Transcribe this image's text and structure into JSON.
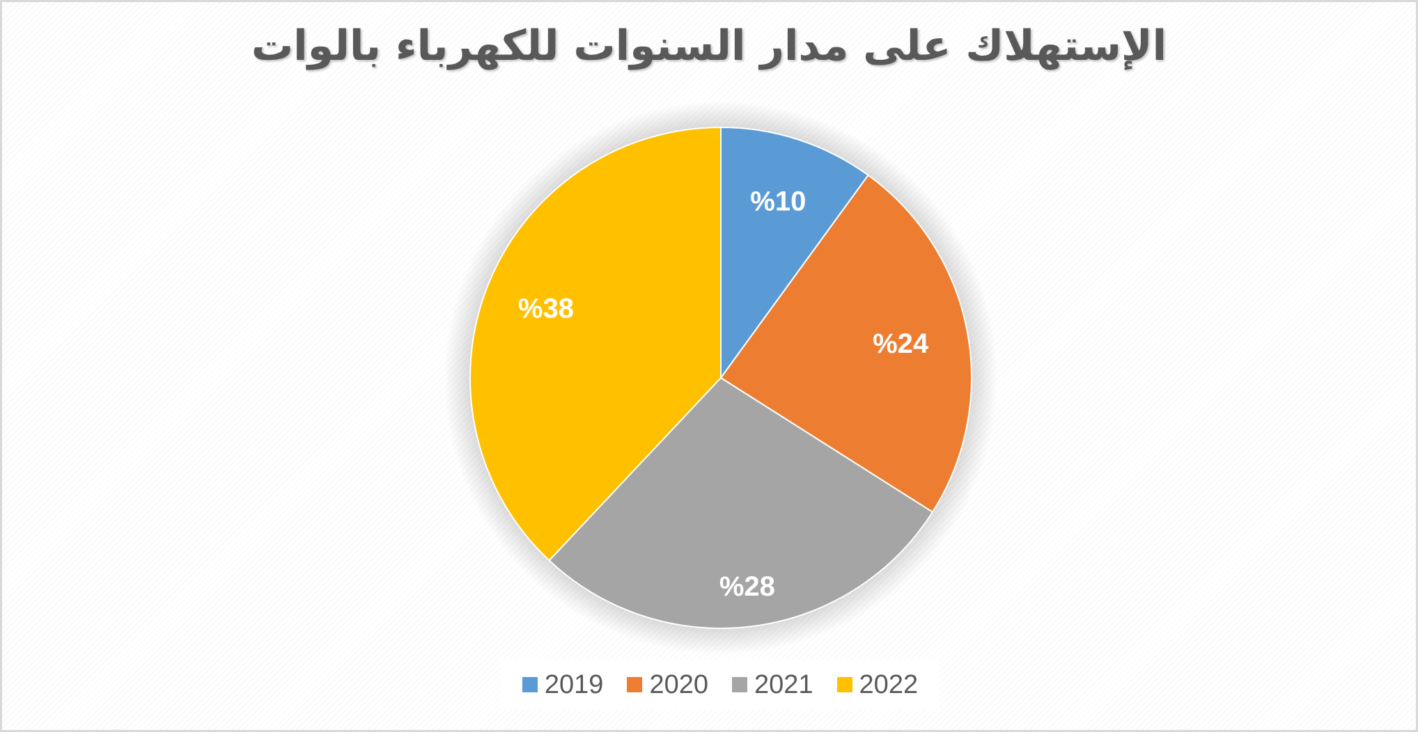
{
  "chart_data": {
    "type": "pie",
    "title": "الإستهلاك على مدار السنوات للكهرباء بالوات",
    "categories": [
      "2019",
      "2020",
      "2021",
      "2022"
    ],
    "values": [
      10,
      24,
      28,
      38
    ],
    "labels": [
      "%10",
      "%24",
      "%28",
      "%38"
    ],
    "colors": [
      "#5b9bd5",
      "#ed7d31",
      "#a5a5a5",
      "#ffc000"
    ],
    "start_angle": "12 o'clock",
    "direction": "clockwise",
    "legend_placement": "bottom"
  }
}
